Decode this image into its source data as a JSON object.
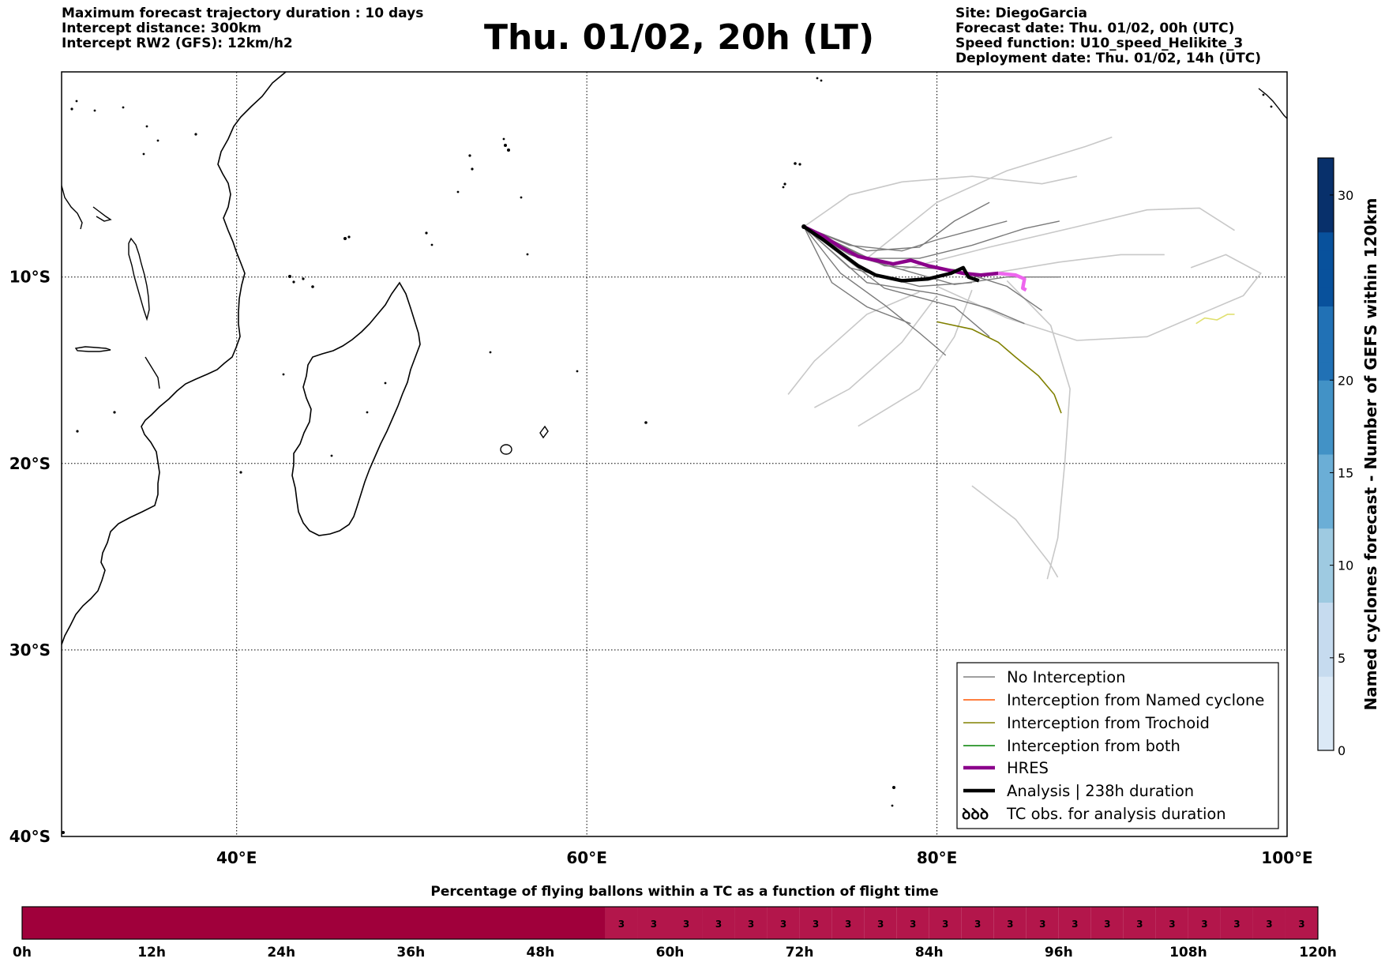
{
  "header": {
    "left_lines": [
      "Maximum forecast trajectory duration : 10 days",
      "Intercept distance: 300km",
      "Intercept RW2 (GFS):  12km/h2"
    ],
    "title": "Thu. 01/02, 20h (LT)",
    "right_lines": [
      "Site: DiegoGarcia",
      "Forecast date: Thu. 01/02, 00h (UTC)",
      "Speed function: U10_speed_Helikite_3",
      "Deployment date: Thu. 01/02, 14h (UTC)"
    ]
  },
  "chart_data": [
    {
      "type": "map",
      "lon_range": [
        30,
        100
      ],
      "lat_range": [
        -40,
        1
      ],
      "lon_ticks": [
        {
          "value": 40,
          "label": "40°E"
        },
        {
          "value": 60,
          "label": "60°E"
        },
        {
          "value": 80,
          "label": "80°E"
        },
        {
          "value": 100,
          "label": "100°E"
        }
      ],
      "lat_ticks": [
        {
          "value": -10,
          "label": "10°S"
        },
        {
          "value": -20,
          "label": "20°S"
        },
        {
          "value": -30,
          "label": "30°S"
        },
        {
          "value": -40,
          "label": "40°S"
        }
      ],
      "grid": true,
      "launch_site": {
        "lon": 72.4,
        "lat": -7.3
      },
      "legend": {
        "position": "lower-right",
        "entries": [
          {
            "label": "No Interception",
            "color": "#808080",
            "style": "thin"
          },
          {
            "label": "Interception from Named cyclone",
            "color": "#ff5500",
            "style": "thin"
          },
          {
            "label": "Interception from Trochoid",
            "color": "#808000",
            "style": "thin"
          },
          {
            "label": "Interception from both",
            "color": "#008000",
            "style": "thin"
          },
          {
            "label": "HRES",
            "color": "#8b008b",
            "style": "thick"
          },
          {
            "label": "Analysis | 238h duration",
            "color": "#000000",
            "style": "thick"
          },
          {
            "label": "TC obs. for analysis duration",
            "color": "#000000",
            "style": "symbol"
          }
        ]
      },
      "tracks": {
        "analysis": [
          [
            72.4,
            -7.3
          ],
          [
            73.5,
            -8.0
          ],
          [
            74.5,
            -8.7
          ],
          [
            75.5,
            -9.4
          ],
          [
            76.5,
            -9.9
          ],
          [
            78,
            -10.2
          ],
          [
            79.5,
            -10.1
          ],
          [
            80.8,
            -9.8
          ],
          [
            81.5,
            -9.5
          ],
          [
            81.8,
            -10.0
          ],
          [
            82.4,
            -10.2
          ]
        ],
        "hres": [
          [
            72.4,
            -7.3
          ],
          [
            73.5,
            -7.8
          ],
          [
            74.5,
            -8.4
          ],
          [
            75.5,
            -8.9
          ],
          [
            76.5,
            -9.1
          ],
          [
            77.5,
            -9.3
          ],
          [
            78.5,
            -9.1
          ],
          [
            79.5,
            -9.4
          ],
          [
            80.5,
            -9.6
          ],
          [
            81.5,
            -9.8
          ],
          [
            82.5,
            -9.9
          ],
          [
            83.5,
            -9.8
          ],
          [
            84.5,
            -9.9
          ],
          [
            85.0,
            -10.1
          ],
          [
            84.9,
            -10.6
          ],
          [
            85.1,
            -10.7
          ]
        ],
        "trochoid": [
          [
            80.0,
            -12.4
          ],
          [
            82.0,
            -12.8
          ],
          [
            83.5,
            -13.5
          ],
          [
            84.5,
            -14.3
          ],
          [
            85.8,
            -15.3
          ],
          [
            86.7,
            -16.3
          ],
          [
            87.1,
            -17.3
          ]
        ],
        "yellow": [
          [
            94.8,
            -12.5
          ],
          [
            95.3,
            -12.2
          ],
          [
            96.0,
            -12.3
          ],
          [
            96.6,
            -12.0
          ],
          [
            97.0,
            -12.0
          ]
        ],
        "grey": [
          [
            [
              72.4,
              -7.3
            ],
            [
              75,
              -8.8
            ],
            [
              78,
              -9.6
            ],
            [
              81,
              -10.4
            ],
            [
              84,
              -10.0
            ],
            [
              87,
              -10.0
            ]
          ],
          [
            [
              72.4,
              -7.3
            ],
            [
              75,
              -8.3
            ],
            [
              78,
              -8.6
            ],
            [
              80,
              -8.0
            ],
            [
              82,
              -7.5
            ],
            [
              84,
              -7.0
            ]
          ],
          [
            [
              72.4,
              -7.3
            ],
            [
              74.5,
              -9.8
            ],
            [
              77,
              -11.5
            ],
            [
              79,
              -13.0
            ],
            [
              80.5,
              -14.2
            ]
          ],
          [
            [
              72.4,
              -7.3
            ],
            [
              76,
              -9.0
            ],
            [
              79,
              -9.0
            ],
            [
              82,
              -8.3
            ],
            [
              85,
              -7.4
            ],
            [
              87,
              -7.0
            ]
          ],
          [
            [
              72.4,
              -7.3
            ],
            [
              76,
              -10.3
            ],
            [
              80,
              -10.9
            ],
            [
              83,
              -11.7
            ],
            [
              85,
              -12.5
            ]
          ],
          [
            [
              72.4,
              -7.3
            ],
            [
              75,
              -9.5
            ],
            [
              79,
              -10.5
            ],
            [
              82,
              -10.3
            ]
          ],
          [
            [
              72.4,
              -7.3
            ],
            [
              76,
              -8.6
            ],
            [
              79,
              -8.4
            ],
            [
              81,
              -7.0
            ],
            [
              83,
              -6.0
            ]
          ],
          [
            [
              72.4,
              -7.3
            ],
            [
              77,
              -9.4
            ],
            [
              81,
              -9.6
            ],
            [
              84,
              -10.5
            ],
            [
              86,
              -11.8
            ]
          ],
          [
            [
              72.4,
              -7.3
            ],
            [
              74,
              -10.3
            ],
            [
              76,
              -11.6
            ],
            [
              78.5,
              -12.5
            ]
          ],
          [
            [
              72.4,
              -7.3
            ],
            [
              77,
              -10.6
            ],
            [
              81,
              -11.6
            ],
            [
              83,
              -13.2
            ]
          ]
        ],
        "light": [
          [
            [
              72.4,
              -7.3
            ],
            [
              75,
              -5.6
            ],
            [
              78,
              -4.9
            ],
            [
              82,
              -4.6
            ],
            [
              86,
              -5.0
            ],
            [
              88,
              -4.6
            ]
          ],
          [
            [
              76,
              -9.0
            ],
            [
              80,
              -6.0
            ],
            [
              84,
              -4.3
            ],
            [
              88.5,
              -3.0
            ],
            [
              90,
              -2.5
            ]
          ],
          [
            [
              78,
              -9.6
            ],
            [
              83,
              -8.4
            ],
            [
              88,
              -7.3
            ],
            [
              92,
              -6.4
            ],
            [
              95,
              -6.3
            ],
            [
              97,
              -7.5
            ]
          ],
          [
            [
              80,
              -10.5
            ],
            [
              84,
              -12.2
            ],
            [
              88,
              -13.4
            ],
            [
              92,
              -13.2
            ],
            [
              95,
              -12.0
            ],
            [
              97.5,
              -11.0
            ],
            [
              98.5,
              -9.8
            ],
            [
              96.5,
              -8.8
            ],
            [
              94.5,
              -9.5
            ]
          ],
          [
            [
              79,
              -10.8
            ],
            [
              76,
              -12.0
            ],
            [
              73,
              -14.5
            ],
            [
              71.5,
              -16.3
            ]
          ],
          [
            [
              80,
              -11.0
            ],
            [
              78,
              -13.5
            ],
            [
              75,
              -16.0
            ],
            [
              73,
              -17.0
            ]
          ],
          [
            [
              82,
              -10.7
            ],
            [
              81,
              -13.2
            ],
            [
              79,
              -16.0
            ],
            [
              75.5,
              -18.0
            ]
          ],
          [
            [
              84,
              -10.2
            ],
            [
              86.5,
              -12.6
            ],
            [
              87.6,
              -16.0
            ],
            [
              87.3,
              -20.0
            ],
            [
              86.9,
              -24.0
            ],
            [
              86.3,
              -26.2
            ]
          ],
          [
            [
              82,
              -21.2
            ],
            [
              84.5,
              -23.0
            ],
            [
              86.4,
              -25.3
            ],
            [
              86.9,
              -26.1
            ]
          ],
          [
            [
              82.5,
              -9.9
            ],
            [
              87,
              -9.2
            ],
            [
              90.5,
              -8.8
            ],
            [
              93,
              -8.8
            ]
          ]
        ]
      }
    },
    {
      "type": "colorbar",
      "label": "Named cyclones forecast - Number of GEFS within 120km",
      "range": [
        0,
        32
      ],
      "ticks": [
        0,
        5,
        10,
        15,
        20,
        30
      ],
      "colors": [
        "#dbe9f6",
        "#c6dbef",
        "#9ecae1",
        "#6baed6",
        "#4292c6",
        "#2171b5",
        "#08519c",
        "#08306b"
      ]
    },
    {
      "type": "heatmap",
      "title": "Percentage of flying ballons within a TC as a function of flight time",
      "x_ticks": [
        "0h",
        "12h",
        "24h",
        "36h",
        "48h",
        "60h",
        "72h",
        "84h",
        "96h",
        "108h",
        "120h"
      ],
      "x_range_hours": [
        0,
        120
      ],
      "cell_hours": 3,
      "first_labeled_cell_start_hour": 54,
      "cell_value_label": "3",
      "color_empty": "#a0003b",
      "color_labeled": "#b3164b"
    }
  ]
}
